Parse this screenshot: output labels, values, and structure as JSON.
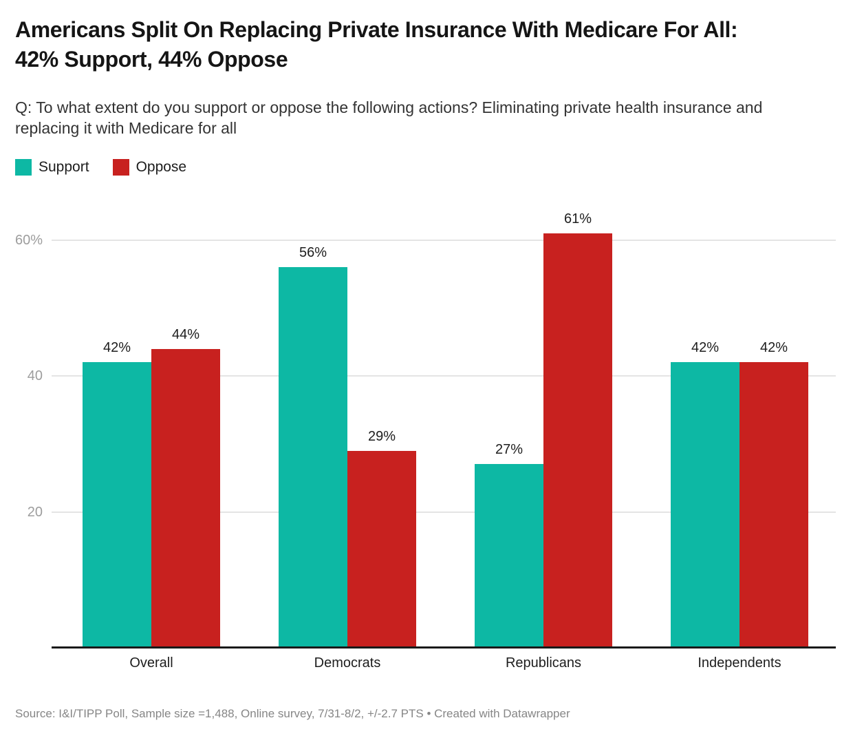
{
  "header": {
    "title": "Americans Split On Replacing Private Insurance With Medicare For All: 42% Support, 44% Oppose",
    "subtitle": "Q: To what extent do you support or oppose the following actions? Eliminating private health insurance and replacing it with Medicare for all"
  },
  "legend": [
    {
      "label": "Support",
      "color": "#0db8a4"
    },
    {
      "label": "Oppose",
      "color": "#c8211f"
    }
  ],
  "chart_data": {
    "type": "bar",
    "title": "Americans Split On Replacing Private Insurance With Medicare For All: 42% Support, 44% Oppose",
    "categories": [
      "Overall",
      "Democrats",
      "Republicans",
      "Independents"
    ],
    "series": [
      {
        "name": "Support",
        "color": "#0db8a4",
        "values": [
          42,
          56,
          27,
          42
        ]
      },
      {
        "name": "Oppose",
        "color": "#c8211f",
        "values": [
          44,
          29,
          61,
          42
        ]
      }
    ],
    "value_suffix": "%",
    "yticks": [
      {
        "value": 20,
        "label": "20"
      },
      {
        "value": 40,
        "label": "40"
      },
      {
        "value": 60,
        "label": "60%"
      }
    ],
    "ylim": [
      0,
      63
    ],
    "grid": true,
    "legend_position": "top-left",
    "xlabel": "",
    "ylabel": ""
  },
  "footer": {
    "source": "Source: I&I/TIPP Poll, Sample size =1,488, Online survey, 7/31-8/2, +/-2.7 PTS • Created with Datawrapper"
  }
}
